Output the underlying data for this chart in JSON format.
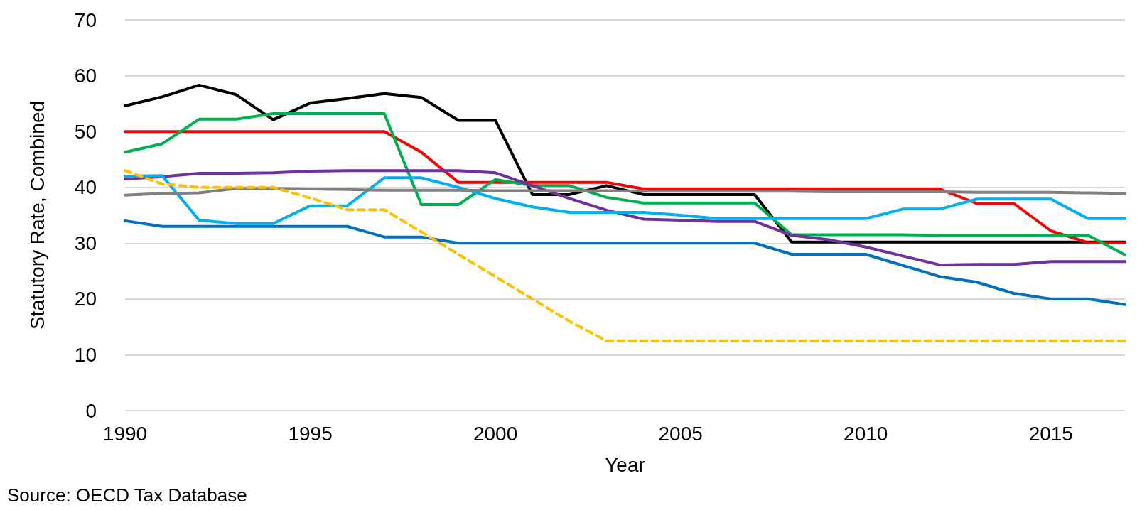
{
  "chart_data": {
    "type": "line",
    "xlabel": "Year",
    "ylabel": "Statutory Rate, Combined",
    "annotations": [
      "Source: OECD Tax Database"
    ],
    "x": [
      1990,
      1991,
      1992,
      1993,
      1994,
      1995,
      1996,
      1997,
      1998,
      1999,
      2000,
      2001,
      2002,
      2003,
      2004,
      2005,
      2006,
      2007,
      2008,
      2009,
      2010,
      2011,
      2012,
      2013,
      2014,
      2015,
      2016,
      2017
    ],
    "xlim": [
      1990,
      2017
    ],
    "xticks": [
      1990,
      1995,
      2000,
      2005,
      2010,
      2015
    ],
    "ylim": [
      0,
      70
    ],
    "yticks": [
      0,
      10,
      20,
      30,
      40,
      50,
      60,
      70
    ],
    "grid": "y",
    "marker": "none",
    "line_style": "solid",
    "series": [
      {
        "color": "#000000",
        "values": [
          54.6,
          56.2,
          58.3,
          56.6,
          52.1,
          55.1,
          55.9,
          56.8,
          56.1,
          52.0,
          52.0,
          38.7,
          38.7,
          40.3,
          38.7,
          38.7,
          38.7,
          38.7,
          30.2,
          30.2,
          30.2,
          30.2,
          30.2,
          30.2,
          30.2,
          30.2,
          30.2,
          30.2
        ]
      },
      {
        "color": "#ff0000",
        "values": [
          50,
          50,
          50,
          50,
          50,
          50,
          50,
          50,
          46.3,
          40.9,
          40.9,
          40.9,
          40.9,
          40.9,
          39.7,
          39.7,
          39.7,
          39.7,
          39.7,
          39.7,
          39.7,
          39.7,
          39.7,
          37.1,
          37.1,
          32.2,
          30.1,
          30.1
        ]
      },
      {
        "color": "#00b050",
        "values": [
          46.3,
          47.8,
          52.2,
          52.2,
          53.2,
          53.2,
          53.2,
          53.2,
          36.9,
          36.9,
          41.4,
          40.3,
          40.3,
          38.2,
          37.2,
          37.2,
          37.2,
          37.2,
          31.5,
          31.5,
          31.5,
          31.5,
          31.4,
          31.4,
          31.4,
          31.4,
          31.4,
          27.9
        ]
      },
      {
        "color": "#7030a0",
        "values": [
          41.5,
          41.9,
          42.5,
          42.5,
          42.6,
          42.9,
          43.0,
          43.0,
          43.0,
          43.0,
          42.6,
          40.3,
          38.0,
          35.9,
          34.3,
          34.1,
          33.9,
          33.9,
          31.4,
          30.6,
          29.3,
          27.7,
          26.1,
          26.2,
          26.2,
          26.7,
          26.7,
          26.7
        ]
      },
      {
        "color": "#00b0f0",
        "values": [
          42.0,
          42.1,
          34.1,
          33.5,
          33.5,
          36.7,
          36.7,
          41.7,
          41.7,
          40.0,
          38.0,
          36.5,
          35.5,
          35.5,
          35.5,
          35.0,
          34.4,
          34.4,
          34.4,
          34.4,
          34.4,
          36.1,
          36.1,
          37.9,
          37.9,
          37.9,
          34.4,
          34.4
        ]
      },
      {
        "color": "#808080",
        "values": [
          38.6,
          38.9,
          39.0,
          39.8,
          39.8,
          39.7,
          39.6,
          39.5,
          39.5,
          39.5,
          39.4,
          39.4,
          39.4,
          39.4,
          39.3,
          39.3,
          39.3,
          39.3,
          39.3,
          39.2,
          39.2,
          39.2,
          39.2,
          39.1,
          39.1,
          39.1,
          39.0,
          38.9
        ]
      },
      {
        "color": "#0070c0",
        "values": [
          34.0,
          33.0,
          33.0,
          33.0,
          33.0,
          33.0,
          33.0,
          31.1,
          31.1,
          30.0,
          30.0,
          30.0,
          30.0,
          30.0,
          30.0,
          30.0,
          30.0,
          30.0,
          28.0,
          28.0,
          28.0,
          26.0,
          24.0,
          23.0,
          21.0,
          20.0,
          20.0,
          19.0
        ]
      },
      {
        "color": "#ffc000",
        "line_style": "dashed",
        "values": [
          43.0,
          40.6,
          40.0,
          40.0,
          40.0,
          38.1,
          36.0,
          36.0,
          32.0,
          28.0,
          24.0,
          20.0,
          16.0,
          12.5,
          12.5,
          12.5,
          12.5,
          12.5,
          12.5,
          12.5,
          12.5,
          12.5,
          12.5,
          12.5,
          12.5,
          12.5,
          12.5,
          12.5
        ]
      }
    ]
  }
}
